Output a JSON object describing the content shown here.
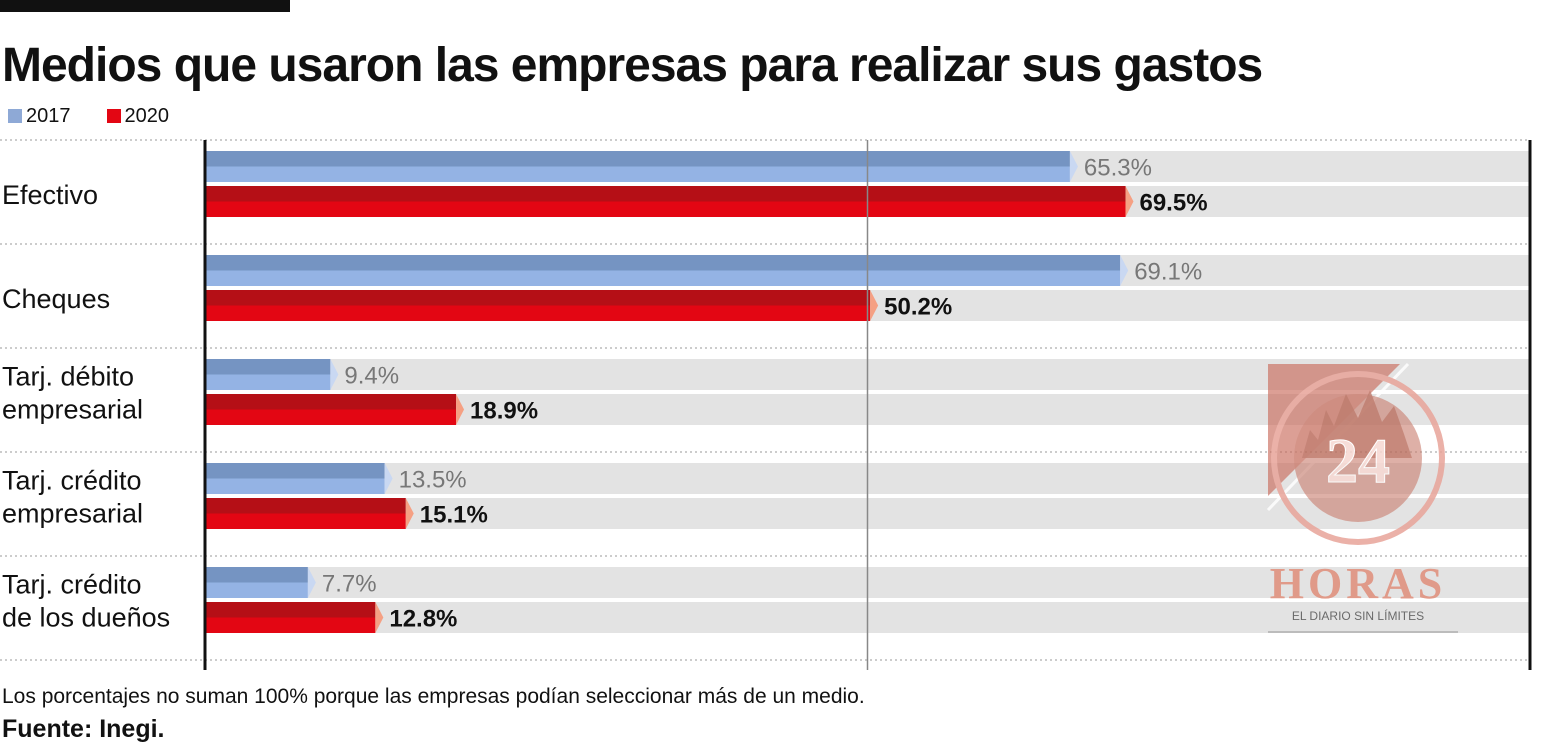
{
  "title": "Medios que usaron las empresas para realizar sus gastos",
  "legend": [
    {
      "label": "2017",
      "color": "#8ea9d6"
    },
    {
      "label": "2020",
      "color": "#e30613"
    }
  ],
  "note": "Los porcentajes no suman 100% porque las empresas podían seleccionar más de un medio.",
  "source": "Fuente: Inegi.",
  "logo": {
    "number": "24",
    "name": "HORAS",
    "tagline": "EL DIARIO SIN LÍMITES"
  },
  "chart_data": {
    "type": "bar",
    "orientation": "horizontal",
    "categories": [
      [
        "Efectivo"
      ],
      [
        "Cheques"
      ],
      [
        "Tarj. débito",
        "empresarial"
      ],
      [
        "Tarj. crédito",
        "empresarial"
      ],
      [
        "Tarj. crédito",
        "de los dueños"
      ]
    ],
    "series": [
      {
        "name": "2017",
        "values": [
          65.3,
          69.1,
          9.4,
          13.5,
          7.7
        ],
        "labels": [
          "65.3%",
          "69.1%",
          "9.4%",
          "13.5%",
          "7.7%"
        ],
        "color": "#8ea9d6"
      },
      {
        "name": "2020",
        "values": [
          69.5,
          50.2,
          18.9,
          15.1,
          12.8
        ],
        "labels": [
          "69.5%",
          "50.2%",
          "18.9%",
          "15.1%",
          "12.8%"
        ],
        "color": "#e30613"
      }
    ],
    "xlim": [
      0,
      100
    ],
    "reference_line": 50,
    "grid": false,
    "legend_position": "top-left"
  }
}
